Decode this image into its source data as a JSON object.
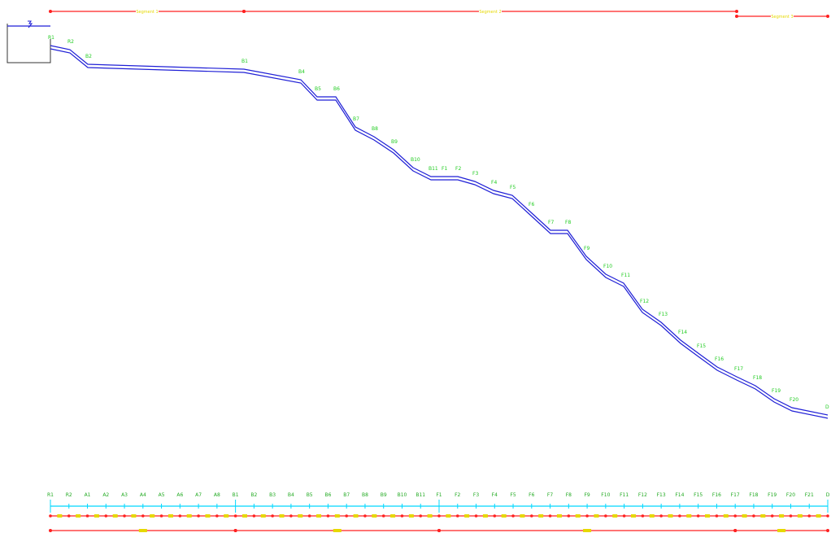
{
  "colors": {
    "pipe": "#1f1fd6",
    "node_label": "#22cc22",
    "elevation_label": "#e6d800",
    "segment_line": "#ff2020",
    "station_axis": "#00d8ff",
    "tank": "#333333"
  },
  "tank": {
    "symbol": "water-level-icon"
  },
  "top_segments": [
    {
      "name": "Segment 1",
      "from": "R1",
      "to": "B1"
    },
    {
      "name": "Segment 2",
      "from": "B1",
      "to": "F17"
    },
    {
      "name": "Segment 3",
      "from": "F17",
      "to": "D"
    }
  ],
  "profile_nodes": [
    {
      "name": "R1",
      "elevation": ""
    },
    {
      "name": "R2",
      "elevation": ""
    },
    {
      "name": "B2",
      "elevation": ""
    },
    {
      "name": "B1",
      "elevation": ""
    },
    {
      "name": "B4",
      "elevation": ""
    },
    {
      "name": "B5",
      "elevation": ""
    },
    {
      "name": "B6",
      "elevation": ""
    },
    {
      "name": "B7",
      "elevation": ""
    },
    {
      "name": "B8",
      "elevation": ""
    },
    {
      "name": "B9",
      "elevation": ""
    },
    {
      "name": "B10",
      "elevation": ""
    },
    {
      "name": "B11",
      "elevation": ""
    },
    {
      "name": "F1",
      "elevation": ""
    },
    {
      "name": "F2",
      "elevation": ""
    },
    {
      "name": "F3",
      "elevation": ""
    },
    {
      "name": "F4",
      "elevation": ""
    },
    {
      "name": "F5",
      "elevation": ""
    },
    {
      "name": "F6",
      "elevation": ""
    },
    {
      "name": "F7",
      "elevation": ""
    },
    {
      "name": "F8",
      "elevation": ""
    },
    {
      "name": "F9",
      "elevation": ""
    },
    {
      "name": "F10",
      "elevation": ""
    },
    {
      "name": "F11",
      "elevation": ""
    },
    {
      "name": "F12",
      "elevation": ""
    },
    {
      "name": "F13",
      "elevation": ""
    },
    {
      "name": "F14",
      "elevation": ""
    },
    {
      "name": "F15",
      "elevation": ""
    },
    {
      "name": "F16",
      "elevation": ""
    },
    {
      "name": "F17",
      "elevation": ""
    },
    {
      "name": "F18",
      "elevation": ""
    },
    {
      "name": "F19",
      "elevation": ""
    },
    {
      "name": "F20",
      "elevation": ""
    },
    {
      "name": "D",
      "elevation": ""
    }
  ],
  "strip_nodes": [
    "R1",
    "R2",
    "A1",
    "A2",
    "A3",
    "A4",
    "A5",
    "A6",
    "A7",
    "A8",
    "B1",
    "B2",
    "B3",
    "B4",
    "B5",
    "B6",
    "B7",
    "B8",
    "B9",
    "B10",
    "B11",
    "F1",
    "F2",
    "F3",
    "F4",
    "F5",
    "F6",
    "F7",
    "F8",
    "F9",
    "F10",
    "F11",
    "F12",
    "F13",
    "F14",
    "F15",
    "F16",
    "F17",
    "F18",
    "F19",
    "F20",
    "F21",
    "D"
  ],
  "bottom_segments": [
    {
      "name": "",
      "from": "R1",
      "to": "B1"
    },
    {
      "name": "",
      "from": "B1",
      "to": "F1"
    },
    {
      "name": "",
      "from": "F1",
      "to": "F17"
    },
    {
      "name": "",
      "from": "F17",
      "to": "D"
    }
  ]
}
